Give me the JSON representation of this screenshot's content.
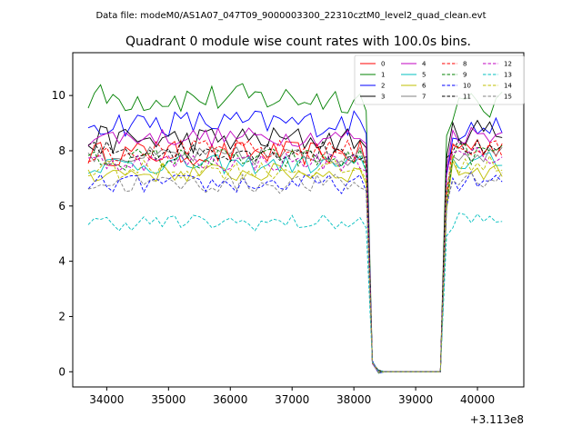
{
  "suptitle": "Data file: modeM0/AS1A07_047T09_9000003300_22310cztM0_level2_quad_clean.evt",
  "chart_data": {
    "type": "line",
    "title": "Quadrant 0 module wise count rates with 100.0s bins.",
    "xlabel": "",
    "ylabel": "",
    "x_offset_label": "+3.113e8",
    "xlim": [
      33450,
      40750
    ],
    "ylim": [
      -0.55,
      11.55
    ],
    "xticks": [
      34000,
      35000,
      36000,
      37000,
      38000,
      39000,
      40000
    ],
    "xtick_labels": [
      "34000",
      "35000",
      "36000",
      "37000",
      "38000",
      "39000",
      "40000"
    ],
    "yticks": [
      0,
      2,
      4,
      6,
      8,
      10
    ],
    "ytick_labels": [
      "0",
      "2",
      "4",
      "6",
      "8",
      "10"
    ],
    "grid": false,
    "legend_position": "top-right",
    "legend_columns": 4,
    "segments": {
      "before": {
        "start": 33700,
        "end": 38100,
        "step": 100
      },
      "drop": [
        [
          38200,
          null
        ],
        [
          38300,
          0.35
        ],
        [
          38400,
          0.0
        ]
      ],
      "zero": {
        "start": 38500,
        "end": 39400,
        "step": 100
      },
      "rise": [
        [
          39500,
          null
        ]
      ],
      "after": {
        "start": 39600,
        "end": 40400,
        "step": 100
      }
    },
    "series": [
      {
        "name": "0",
        "color": "#ff0000",
        "dashed": false,
        "level": 7.9,
        "after_level": 8.2,
        "amp": 0.45
      },
      {
        "name": "1",
        "color": "#008000",
        "dashed": false,
        "level": 9.9,
        "after_level": 9.6,
        "amp": 0.55
      },
      {
        "name": "2",
        "color": "#0000ff",
        "dashed": false,
        "level": 9.0,
        "after_level": 8.8,
        "amp": 0.5
      },
      {
        "name": "3",
        "color": "#000000",
        "dashed": false,
        "level": 8.4,
        "after_level": 8.7,
        "amp": 0.5
      },
      {
        "name": "4",
        "color": "#c000c0",
        "dashed": false,
        "level": 8.5,
        "after_level": 8.6,
        "amp": 0.35
      },
      {
        "name": "5",
        "color": "#00bfbf",
        "dashed": false,
        "level": 7.5,
        "after_level": 7.6,
        "amp": 0.35
      },
      {
        "name": "6",
        "color": "#bfbf00",
        "dashed": false,
        "level": 7.2,
        "after_level": 7.3,
        "amp": 0.35
      },
      {
        "name": "7",
        "color": "#808080",
        "dashed": false,
        "level": 7.8,
        "after_level": 7.9,
        "amp": 0.35
      },
      {
        "name": "8",
        "color": "#ff0000",
        "dashed": true,
        "level": 8.0,
        "after_level": 8.0,
        "amp": 0.4
      },
      {
        "name": "9",
        "color": "#008000",
        "dashed": true,
        "level": 7.7,
        "after_level": 7.9,
        "amp": 0.4
      },
      {
        "name": "10",
        "color": "#0000ff",
        "dashed": true,
        "level": 6.8,
        "after_level": 6.9,
        "amp": 0.35
      },
      {
        "name": "11",
        "color": "#000000",
        "dashed": true,
        "level": 8.0,
        "after_level": 8.2,
        "amp": 0.4
      },
      {
        "name": "12",
        "color": "#c000c0",
        "dashed": true,
        "level": 7.6,
        "after_level": 7.8,
        "amp": 0.35
      },
      {
        "name": "13",
        "color": "#00bfbf",
        "dashed": true,
        "level": 5.4,
        "after_level": 5.5,
        "amp": 0.3
      },
      {
        "name": "14",
        "color": "#bfbf00",
        "dashed": true,
        "level": 7.3,
        "after_level": 7.5,
        "amp": 0.35
      },
      {
        "name": "15",
        "color": "#808080",
        "dashed": true,
        "level": 6.8,
        "after_level": 7.0,
        "amp": 0.35
      }
    ]
  }
}
